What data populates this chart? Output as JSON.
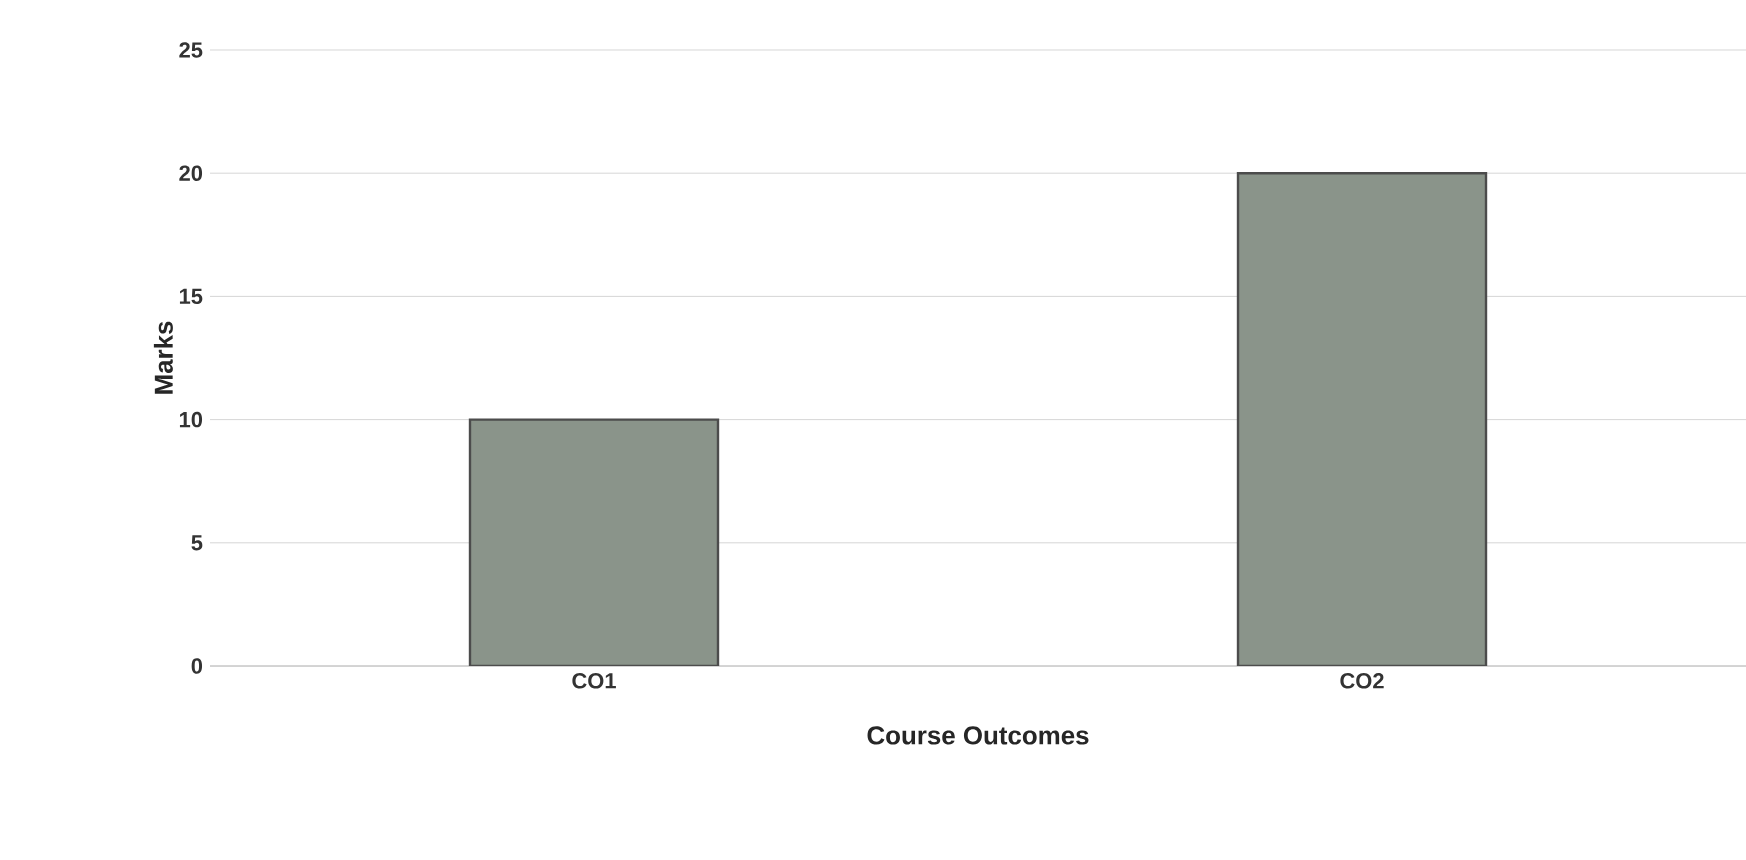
{
  "chart_data": {
    "type": "bar",
    "xlabel": "Course Outcomes",
    "ylabel": "Marks",
    "categories": [
      "CO1",
      "CO2"
    ],
    "values": [
      10,
      20
    ],
    "color": "#8a948a",
    "ylim": [
      0,
      25
    ],
    "yticks": [
      0,
      5,
      10,
      15,
      20,
      25
    ],
    "grid": "y"
  }
}
